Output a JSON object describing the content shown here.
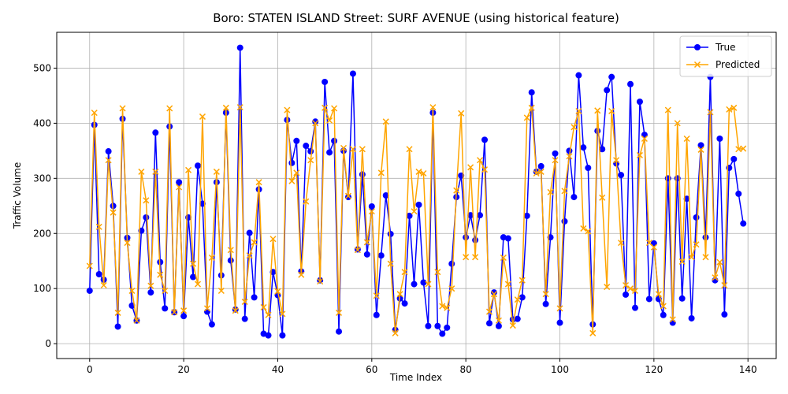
{
  "chart_data": {
    "type": "line",
    "title": "Boro: STATEN ISLAND Street: SURF AVENUE (using historical feature)",
    "xlabel": "Time Index",
    "ylabel": "Traffic Volume",
    "xlim": [
      -7,
      146
    ],
    "ylim": [
      -27,
      565
    ],
    "xticks": [
      0,
      20,
      40,
      60,
      80,
      100,
      120,
      140
    ],
    "yticks": [
      0,
      100,
      200,
      300,
      400,
      500
    ],
    "grid": true,
    "legend_position": "top-right",
    "series": [
      {
        "name": "True",
        "color": "#0000ff",
        "marker": "o",
        "values": [
          96,
          397,
          126,
          116,
          349,
          250,
          31,
          408,
          192,
          69,
          42,
          205,
          229,
          93,
          383,
          148,
          64,
          394,
          57,
          293,
          50,
          229,
          121,
          323,
          254,
          58,
          35,
          293,
          124,
          419,
          151,
          62,
          537,
          45,
          201,
          84,
          280,
          18,
          15,
          130,
          88,
          15,
          406,
          328,
          368,
          131,
          359,
          349,
          403,
          115,
          475,
          347,
          368,
          22,
          350,
          266,
          490,
          171,
          307,
          162,
          249,
          52,
          160,
          269,
          199,
          25,
          82,
          73,
          232,
          108,
          252,
          111,
          32,
          419,
          32,
          18,
          29,
          145,
          266,
          305,
          193,
          233,
          188,
          233,
          370,
          37,
          93,
          32,
          193,
          191,
          44,
          45,
          84,
          232,
          456,
          312,
          322,
          72,
          193,
          345,
          38,
          222,
          350,
          266,
          487,
          356,
          319,
          35,
          386,
          353,
          460,
          484,
          327,
          306,
          89,
          471,
          65,
          439,
          379,
          81,
          182,
          81,
          52,
          300,
          38,
          300,
          82,
          263,
          46,
          229,
          360,
          193,
          484,
          115,
          372,
          53,
          319,
          335,
          272,
          218
        ]
      },
      {
        "name": "Predicted",
        "color": "#ffa500",
        "marker": "x",
        "values": [
          141,
          419,
          212,
          106,
          333,
          238,
          56,
          427,
          183,
          96,
          42,
          312,
          260,
          105,
          312,
          125,
          96,
          427,
          57,
          284,
          60,
          315,
          145,
          108,
          412,
          64,
          156,
          312,
          96,
          428,
          170,
          60,
          429,
          76,
          160,
          184,
          293,
          66,
          52,
          190,
          95,
          54,
          424,
          295,
          310,
          125,
          258,
          333,
          400,
          113,
          428,
          405,
          427,
          56,
          355,
          268,
          353,
          170,
          353,
          184,
          240,
          87,
          310,
          403,
          145,
          19,
          90,
          130,
          353,
          240,
          312,
          309,
          108,
          429,
          130,
          68,
          65,
          100,
          278,
          418,
          157,
          320,
          157,
          333,
          316,
          58,
          90,
          42,
          156,
          108,
          33,
          80,
          115,
          410,
          428,
          309,
          312,
          90,
          275,
          333,
          64,
          277,
          340,
          393,
          422,
          209,
          204,
          19,
          423,
          265,
          103,
          422,
          333,
          183,
          106,
          100,
          96,
          342,
          372,
          183,
          175,
          90,
          68,
          424,
          44,
          400,
          149,
          372,
          157,
          180,
          352,
          157,
          420,
          120,
          148,
          106,
          425,
          428,
          353,
          354
        ]
      }
    ]
  }
}
